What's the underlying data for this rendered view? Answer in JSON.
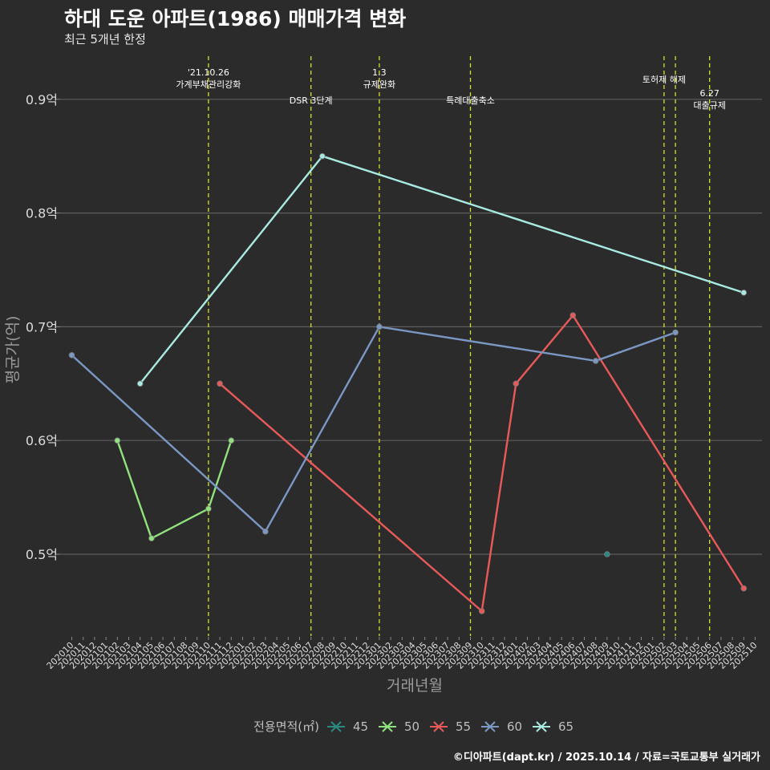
{
  "title": "하대 도운 아파트(1986) 매매가격 변화",
  "subtitle": "최근 5개년 한정",
  "caption": "©디아파트(dapt.kr) / 2025.10.14 / 자료=국토교통부 실거래가",
  "chart_data": {
    "type": "line",
    "title": "하대 도운 아파트(1986) 매매가격 변화",
    "xlabel": "거래년월",
    "ylabel": "평균가(억)",
    "ylim": [
      0.43,
      0.94
    ],
    "yticks": [
      0.5,
      0.6,
      0.7,
      0.8,
      0.9
    ],
    "ytick_labels": [
      "0.5억",
      "0.6억",
      "0.7억",
      "0.8억",
      "0.9억"
    ],
    "grid": true,
    "categories": [
      "202010",
      "202011",
      "202012",
      "202101",
      "202102",
      "202103",
      "202104",
      "202105",
      "202106",
      "202107",
      "202108",
      "202109",
      "202110",
      "202111",
      "202112",
      "202201",
      "202202",
      "202203",
      "202204",
      "202205",
      "202206",
      "202207",
      "202208",
      "202209",
      "202210",
      "202211",
      "202212",
      "202301",
      "202302",
      "202303",
      "202304",
      "202305",
      "202306",
      "202307",
      "202308",
      "202309",
      "202310",
      "202311",
      "202312",
      "202401",
      "202402",
      "202403",
      "202404",
      "202405",
      "202406",
      "202407",
      "202408",
      "202409",
      "202410",
      "202411",
      "202412",
      "202501",
      "202502",
      "202503",
      "202504",
      "202505",
      "202506",
      "202507",
      "202508",
      "202509",
      "202510"
    ],
    "legend_title": "전용면적(㎡)",
    "legend_position": "bottom",
    "series": [
      {
        "name": "45",
        "color": "#2a8a82",
        "points": [
          [
            "202409",
            0.5
          ]
        ]
      },
      {
        "name": "50",
        "color": "#90e27c",
        "points": [
          [
            "202102",
            0.6
          ],
          [
            "202105",
            0.514
          ],
          [
            "202110",
            0.54
          ],
          [
            "202112",
            0.6
          ]
        ]
      },
      {
        "name": "55",
        "color": "#e8595a",
        "points": [
          [
            "202111",
            0.65
          ],
          [
            "202310",
            0.45
          ],
          [
            "202401",
            0.65
          ],
          [
            "202406",
            0.71
          ],
          [
            "202509",
            0.47
          ]
        ]
      },
      {
        "name": "60",
        "color": "#7b97c4",
        "points": [
          [
            "202010",
            0.675
          ],
          [
            "202203",
            0.52
          ],
          [
            "202301",
            0.7
          ],
          [
            "202408",
            0.67
          ],
          [
            "202503",
            0.695
          ]
        ]
      },
      {
        "name": "65",
        "color": "#a8eae2",
        "points": [
          [
            "202104",
            0.65
          ],
          [
            "202208",
            0.85
          ],
          [
            "202509",
            0.73
          ]
        ]
      }
    ],
    "events": [
      {
        "x": "202110",
        "lines": [
          "'21.10.26",
          "가계부채관리강화"
        ],
        "level": "high"
      },
      {
        "x": "202207",
        "lines": [
          "DSR 3단계"
        ],
        "level": "low"
      },
      {
        "x": "202301",
        "lines": [
          "1.3",
          "규제완화"
        ],
        "level": "high"
      },
      {
        "x": "202309",
        "lines": [
          "특례대출축소"
        ],
        "level": "low"
      },
      {
        "x": "202502",
        "lines": [
          "토허제 해제"
        ],
        "level": "mid"
      },
      {
        "x": "202503",
        "lines": [],
        "level": "mid"
      },
      {
        "x": "202506",
        "lines": [
          "6.27",
          "대출규제"
        ],
        "level": "low2"
      }
    ]
  }
}
